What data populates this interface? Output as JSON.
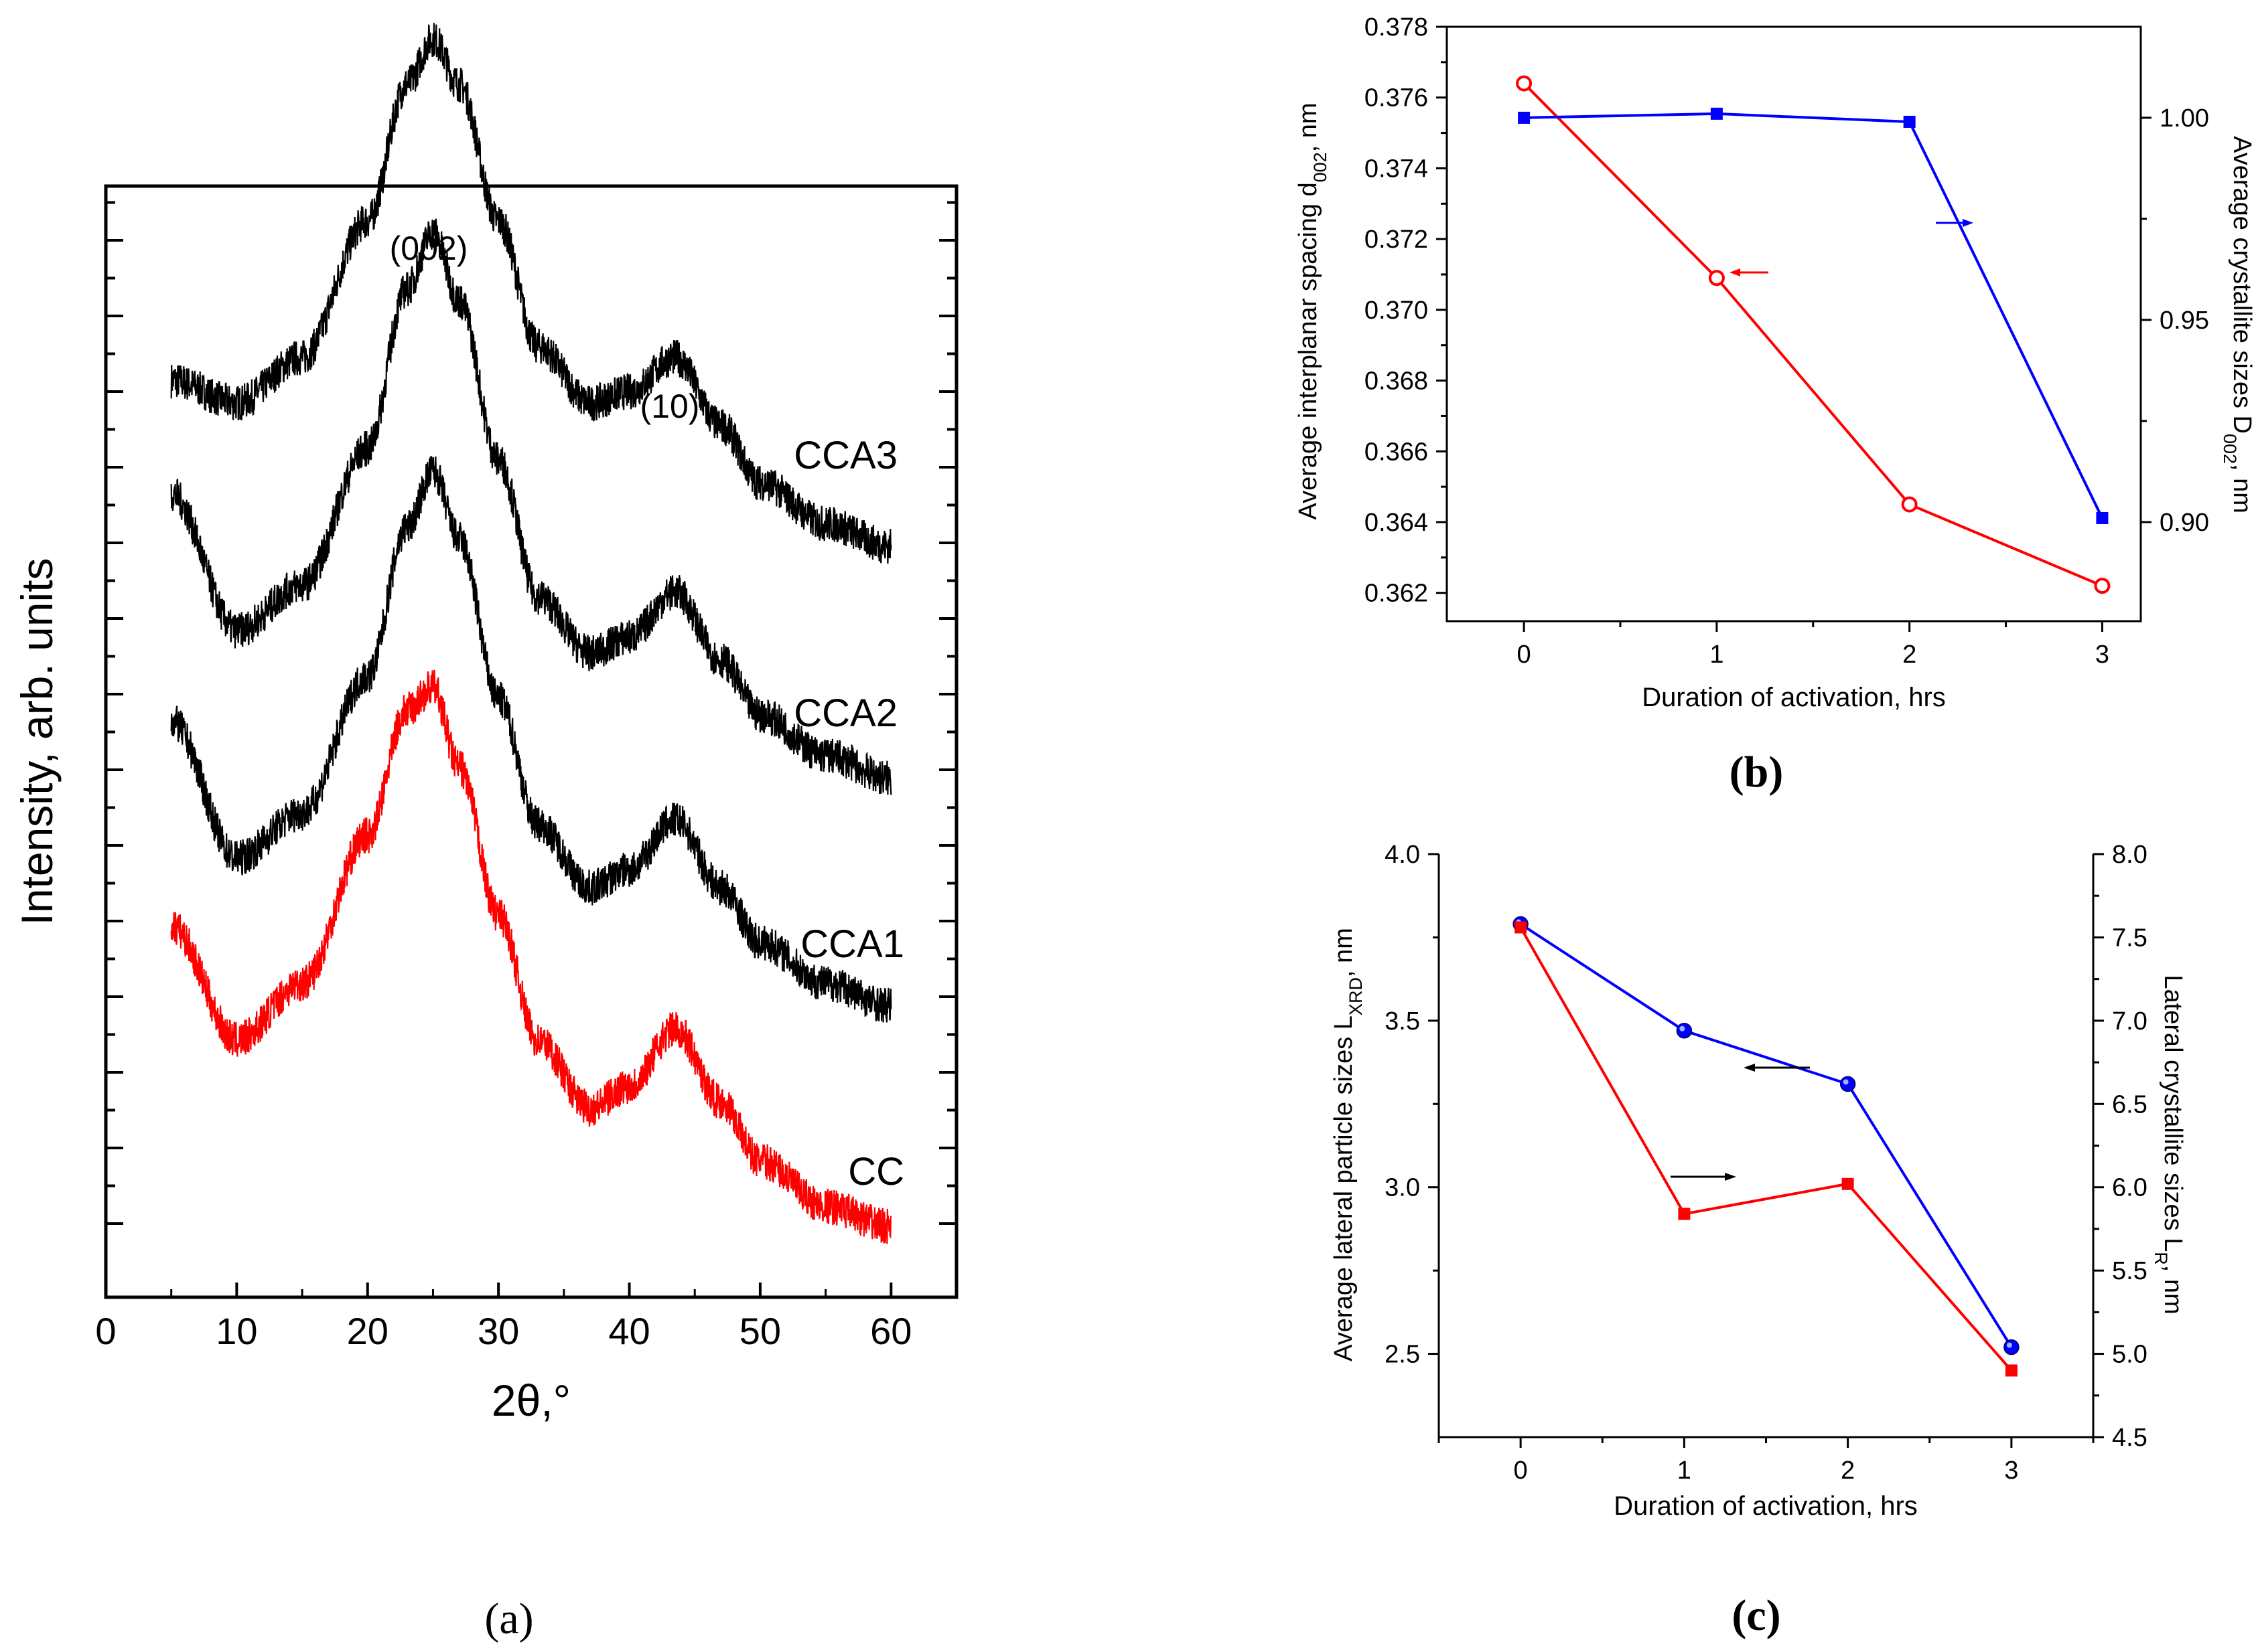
{
  "chart_data": [
    {
      "type": "line",
      "panel_label": "(a)",
      "xlabel": "2θ,°",
      "ylabel": "Intensity, arb. units",
      "xlim": [
        0,
        65
      ],
      "x_ticks": [
        "0",
        "10",
        "20",
        "30",
        "40",
        "50",
        "60"
      ],
      "x_tick_values": [
        0,
        10,
        20,
        30,
        40,
        50,
        60
      ],
      "annotations": [
        "(002)",
        "(10)"
      ],
      "series": [
        {
          "name": "CCA3",
          "color": "#000000",
          "offset": 3.0,
          "x": [
            5,
            10,
            15,
            20,
            23,
            25,
            27,
            30,
            33,
            37,
            40,
            43.5,
            47,
            50,
            55,
            60
          ],
          "y": [
            1.05,
            0.95,
            1.15,
            1.75,
            2.35,
            2.55,
            2.35,
            1.75,
            1.2,
            0.95,
            1.0,
            1.15,
            0.85,
            0.6,
            0.42,
            0.32
          ]
        },
        {
          "name": "CCA2",
          "color": "#000000",
          "offset": 2.0,
          "x": [
            5,
            10,
            15,
            20,
            23,
            25,
            27,
            30,
            33,
            37,
            40,
            43.5,
            47,
            50,
            55,
            60
          ],
          "y": [
            1.55,
            0.95,
            1.15,
            1.75,
            2.45,
            2.7,
            2.4,
            1.7,
            1.1,
            0.85,
            0.92,
            1.12,
            0.82,
            0.58,
            0.4,
            0.3
          ]
        },
        {
          "name": "CCA1",
          "color": "#000000",
          "offset": 1.0,
          "x": [
            5,
            10,
            15,
            20,
            23,
            25,
            27,
            30,
            33,
            37,
            40,
            43.5,
            47,
            50,
            55,
            60
          ],
          "y": [
            1.55,
            0.95,
            1.15,
            1.75,
            2.4,
            2.65,
            2.35,
            1.65,
            1.1,
            0.82,
            0.9,
            1.12,
            0.82,
            0.58,
            0.4,
            0.3
          ]
        },
        {
          "name": "CC",
          "color": "#ff0000",
          "offset": 0.0,
          "x": [
            5,
            10,
            15,
            20,
            23,
            25,
            27,
            30,
            33,
            37,
            40,
            43.5,
            47,
            50,
            55,
            60
          ],
          "y": [
            1.65,
            1.15,
            1.4,
            2.05,
            2.6,
            2.7,
            2.35,
            1.7,
            1.15,
            0.85,
            0.95,
            1.2,
            0.88,
            0.62,
            0.42,
            0.33
          ]
        }
      ]
    },
    {
      "type": "line",
      "panel_label": "(b)",
      "xlabel": "Duration of activation, hrs",
      "ylabel_left": "Average interplanar spacing d002, nm",
      "ylabel_left_main": "Average interplanar spacing d",
      "ylabel_left_sub": "002",
      "ylabel_left_tail": ", nm",
      "ylabel_right": "Average crystallite sizes D002, nm",
      "ylabel_right_main": "Average crystallite sizes D",
      "ylabel_right_sub": "002",
      "ylabel_right_tail": ", nm",
      "xlim": [
        -0.4,
        3.2
      ],
      "ylim_left": [
        0.3612,
        0.378
      ],
      "ylim_right": [
        0.8755,
        1.0225
      ],
      "x_ticks": [
        "0",
        "1",
        "2",
        "3"
      ],
      "x_tick_values": [
        0,
        1,
        2,
        3
      ],
      "y_left_ticks": [
        "0.362",
        "0.364",
        "0.366",
        "0.368",
        "0.370",
        "0.372",
        "0.374",
        "0.376",
        "0.378"
      ],
      "y_left_tick_values": [
        0.362,
        0.364,
        0.366,
        0.368,
        0.37,
        0.372,
        0.374,
        0.376,
        0.378
      ],
      "y_right_ticks": [
        "0.90",
        "0.95",
        "1.00"
      ],
      "y_right_tick_values": [
        0.9,
        0.95,
        1.0
      ],
      "series": [
        {
          "name": "d002",
          "axis": "left",
          "marker": "open-circle",
          "color": "#ff0000",
          "x": [
            0,
            1,
            2,
            3
          ],
          "y": [
            0.3764,
            0.3709,
            0.3645,
            0.3622
          ]
        },
        {
          "name": "D002",
          "axis": "right",
          "marker": "filled-square",
          "color": "#0000ff",
          "x": [
            0,
            1,
            2,
            3
          ],
          "y": [
            1.0,
            1.001,
            0.999,
            0.901
          ]
        }
      ]
    },
    {
      "type": "line",
      "panel_label": "(c)",
      "xlabel": "Duration of activation, hrs",
      "ylabel_left": "Average lateral particle sizes LXRD, nm",
      "ylabel_left_main": "Average lateral particle sizes L",
      "ylabel_left_sub": "XRD",
      "ylabel_left_tail": ", nm",
      "ylabel_right": "Lateral  crystallite sizes LR, nm",
      "ylabel_right_main": "Lateral  crystallite sizes L",
      "ylabel_right_sub": "R",
      "ylabel_right_tail": ", nm",
      "xlim": [
        -0.5,
        3.5
      ],
      "ylim_left": [
        2.25,
        4.0
      ],
      "ylim_right": [
        4.5,
        8.0
      ],
      "x_ticks": [
        "0",
        "1",
        "2",
        "3"
      ],
      "x_tick_values": [
        0,
        1,
        2,
        3
      ],
      "y_left_ticks": [
        "2.5",
        "3.0",
        "3.5",
        "4.0"
      ],
      "y_left_tick_values": [
        2.5,
        3.0,
        3.5,
        4.0
      ],
      "y_right_ticks": [
        "4.5",
        "5.0",
        "5.5",
        "6.0",
        "6.5",
        "7.0",
        "7.5",
        "8.0"
      ],
      "y_right_tick_values": [
        4.5,
        5.0,
        5.5,
        6.0,
        6.5,
        7.0,
        7.5,
        8.0
      ],
      "series": [
        {
          "name": "LXRD",
          "axis": "left",
          "marker": "filled-circle",
          "color": "#0000ff",
          "x": [
            0,
            1,
            2,
            3
          ],
          "y": [
            3.79,
            3.47,
            3.31,
            2.52
          ]
        },
        {
          "name": "LR",
          "axis": "right",
          "marker": "filled-square",
          "color": "#ff0000",
          "x": [
            0,
            1,
            2,
            3
          ],
          "y": [
            7.56,
            5.84,
            6.02,
            4.9
          ]
        }
      ]
    }
  ]
}
